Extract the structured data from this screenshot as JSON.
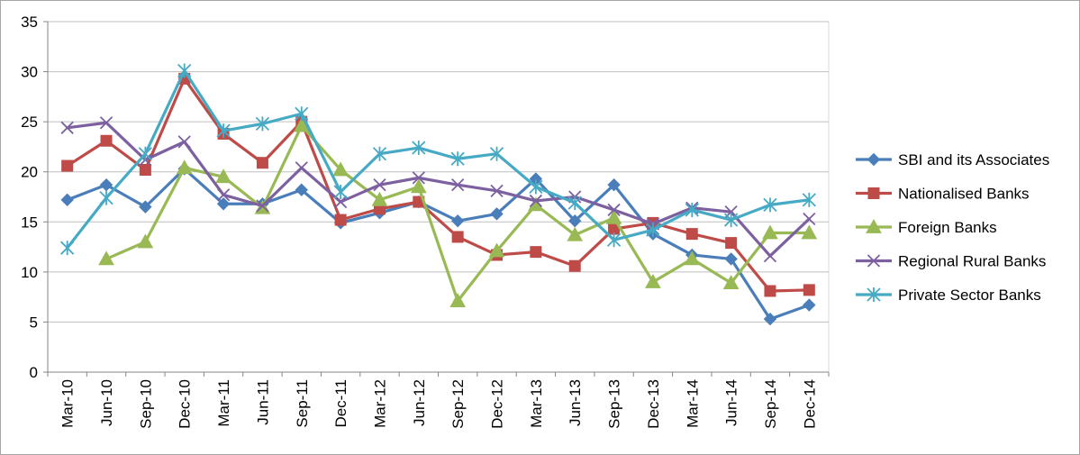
{
  "chart_data": {
    "type": "line",
    "title": "",
    "xlabel": "",
    "ylabel": "",
    "ylim": [
      0,
      35
    ],
    "yticks": [
      0,
      5,
      10,
      15,
      20,
      25,
      30,
      35
    ],
    "grid": "horizontal",
    "legend_position": "right",
    "categories": [
      "Mar-10",
      "Jun-10",
      "Sep-10",
      "Dec-10",
      "Mar-11",
      "Jun-11",
      "Sep-11",
      "Dec-11",
      "Mar-12",
      "Jun-12",
      "Sep-12",
      "Dec-12",
      "Mar-13",
      "Jun-13",
      "Sep-13",
      "Dec-13",
      "Mar-14",
      "Jun-14",
      "Sep-14",
      "Dec-14"
    ],
    "series": [
      {
        "name": "SBI and its Associates",
        "color": "#4a7ebb",
        "marker": "diamond",
        "values": [
          17.2,
          18.7,
          16.5,
          20.3,
          16.8,
          16.8,
          18.2,
          14.9,
          15.9,
          17.0,
          15.1,
          15.8,
          19.3,
          15.1,
          18.7,
          13.8,
          11.7,
          11.3,
          5.3,
          6.7
        ]
      },
      {
        "name": "Nationalised Banks",
        "color": "#be4b48",
        "marker": "square",
        "values": [
          20.6,
          23.1,
          20.2,
          29.3,
          23.8,
          20.9,
          25.0,
          15.2,
          16.3,
          17.0,
          13.5,
          11.7,
          12.0,
          10.6,
          14.3,
          14.9,
          13.8,
          12.9,
          8.1,
          8.2
        ]
      },
      {
        "name": "Foreign Banks",
        "color": "#98b954",
        "marker": "triangle",
        "values": [
          null,
          11.3,
          13.0,
          20.4,
          19.5,
          16.4,
          24.6,
          20.2,
          17.2,
          18.5,
          7.1,
          12.1,
          16.7,
          13.7,
          15.4,
          9.0,
          11.3,
          8.9,
          13.9,
          13.9
        ]
      },
      {
        "name": "Regional Rural Banks",
        "color": "#7d60a0",
        "marker": "x",
        "values": [
          24.4,
          24.9,
          21.2,
          23.0,
          17.7,
          16.6,
          20.4,
          17.0,
          18.7,
          19.4,
          18.7,
          18.1,
          17.1,
          17.5,
          16.2,
          14.8,
          16.4,
          16.0,
          11.6,
          15.3
        ]
      },
      {
        "name": "Private Sector Banks",
        "color": "#46aac5",
        "marker": "star",
        "values": [
          12.4,
          17.4,
          21.8,
          30.1,
          24.1,
          24.8,
          25.8,
          18.0,
          21.8,
          22.4,
          21.3,
          21.8,
          18.5,
          16.9,
          13.2,
          14.2,
          16.2,
          15.2,
          16.7,
          17.2
        ]
      }
    ]
  }
}
